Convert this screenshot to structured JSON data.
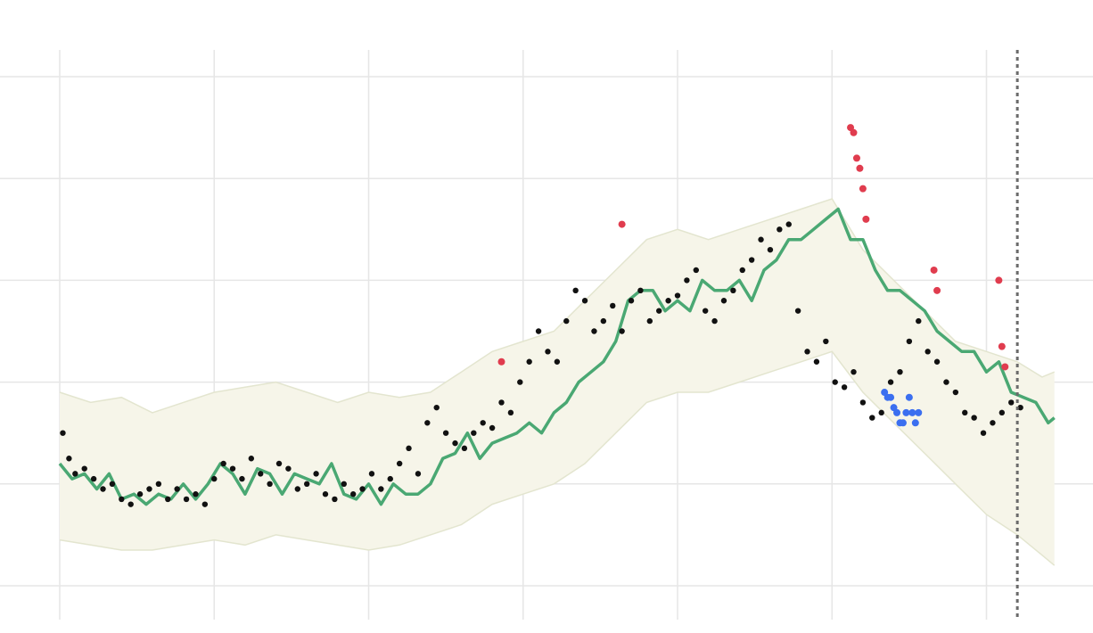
{
  "chart_data": {
    "type": "line",
    "title": "",
    "xlabel": "",
    "ylabel": "",
    "grid": true,
    "legend": "none",
    "xlim": [
      0,
      336
    ],
    "ylim": [
      -10,
      45
    ],
    "x_gridlines": [
      0,
      50,
      100,
      150,
      200,
      250,
      300
    ],
    "y_gridlines": [
      -5,
      5,
      15,
      25,
      35,
      45
    ],
    "forecast_start_x": 310,
    "colors": {
      "band_fill": "#f6f5e9",
      "band_edge": "#e3e5cf",
      "line": "#4aa873",
      "observed": "#111111",
      "upper_anomaly": "#e03c4e",
      "lower_anomaly": "#3b6ff0",
      "forecast_marker": "#6b6b6b",
      "grid": "#e6e6e6"
    },
    "series": [
      {
        "role": "expected",
        "x": [
          0,
          4,
          8,
          12,
          16,
          20,
          24,
          28,
          32,
          36,
          40,
          44,
          48,
          52,
          56,
          60,
          64,
          68,
          72,
          76,
          80,
          84,
          88,
          92,
          96,
          100,
          104,
          108,
          112,
          116,
          120,
          124,
          128,
          132,
          136,
          140,
          144,
          148,
          152,
          156,
          160,
          164,
          168,
          172,
          176,
          180,
          184,
          188,
          192,
          196,
          200,
          204,
          208,
          212,
          216,
          220,
          224,
          228,
          232,
          236,
          240,
          244,
          248,
          252,
          256,
          260,
          264,
          268,
          272,
          276,
          280,
          284,
          288,
          292,
          296,
          300,
          304,
          308,
          312,
          316,
          320,
          322
        ],
        "y": [
          7,
          5.5,
          6,
          4.5,
          6,
          3.5,
          4,
          3,
          4,
          3.5,
          5,
          3.5,
          5,
          7,
          6,
          4,
          6.5,
          6,
          4,
          6,
          5.5,
          5,
          7,
          4,
          3.5,
          5,
          3,
          5,
          4,
          4,
          5,
          7.5,
          8,
          10,
          7.5,
          9,
          9.5,
          10,
          11,
          10,
          12,
          13,
          15,
          16,
          17,
          19,
          23,
          24,
          24,
          22,
          23,
          22,
          25,
          24,
          24,
          25,
          23,
          26,
          27,
          29,
          29,
          30,
          31,
          32,
          29,
          29,
          26,
          24,
          24,
          23,
          22,
          20,
          19,
          18,
          18,
          16,
          17,
          14,
          13.5,
          13,
          11,
          11.5
        ]
      },
      {
        "role": "upper_bound",
        "x": [
          0,
          10,
          20,
          30,
          40,
          50,
          60,
          70,
          80,
          90,
          100,
          110,
          120,
          130,
          140,
          150,
          160,
          170,
          180,
          190,
          200,
          210,
          220,
          230,
          240,
          250,
          260,
          270,
          280,
          290,
          300,
          310,
          318,
          322
        ],
        "y": [
          14,
          13,
          13.5,
          12,
          13,
          14,
          14.5,
          15,
          14,
          13,
          14,
          13.5,
          14,
          16,
          18,
          19,
          20,
          23,
          26,
          29,
          30,
          29,
          30,
          31,
          32,
          33,
          28,
          25,
          22,
          19,
          18,
          17,
          15.5,
          16
        ]
      },
      {
        "role": "lower_bound",
        "x": [
          0,
          10,
          20,
          30,
          40,
          50,
          60,
          70,
          80,
          90,
          100,
          110,
          120,
          130,
          140,
          150,
          160,
          170,
          180,
          190,
          200,
          210,
          220,
          230,
          240,
          250,
          260,
          270,
          280,
          290,
          300,
          310,
          318,
          322
        ],
        "y": [
          -0.5,
          -1,
          -1.5,
          -1.5,
          -1,
          -0.5,
          -1,
          0,
          -0.5,
          -1,
          -1.5,
          -1,
          0,
          1,
          3,
          4,
          5,
          7,
          10,
          13,
          14,
          14,
          15,
          16,
          17,
          18,
          14,
          11,
          8,
          5,
          2,
          0,
          -2,
          -3
        ]
      }
    ],
    "observed_points": {
      "x": [
        1,
        3,
        5,
        8,
        11,
        14,
        17,
        20,
        23,
        26,
        29,
        32,
        35,
        38,
        41,
        44,
        47,
        50,
        53,
        56,
        59,
        62,
        65,
        68,
        71,
        74,
        77,
        80,
        83,
        86,
        89,
        92,
        95,
        98,
        101,
        104,
        107,
        110,
        113,
        116,
        119,
        122,
        125,
        128,
        131,
        134,
        137,
        140,
        143,
        146,
        149,
        152,
        155,
        158,
        161,
        164,
        167,
        170,
        173,
        176,
        179,
        182,
        185,
        188,
        191,
        194,
        197,
        200,
        203,
        206,
        209,
        212,
        215,
        218,
        221,
        224,
        227,
        230,
        233,
        236,
        239,
        242,
        245,
        248,
        251,
        254,
        257,
        260,
        263,
        266,
        269,
        272,
        275,
        278,
        281,
        284,
        287,
        290,
        293,
        296,
        299,
        302,
        305,
        308,
        311
      ],
      "y": [
        10,
        7.5,
        6,
        6.5,
        5.5,
        4.5,
        5,
        3.5,
        3,
        4,
        4.5,
        5,
        3.5,
        4.5,
        3.5,
        4,
        3,
        5.5,
        7,
        6.5,
        5.5,
        7.5,
        6,
        5,
        7,
        6.5,
        4.5,
        5,
        6,
        4,
        3.5,
        5,
        4,
        4.5,
        6,
        4.5,
        5.5,
        7,
        8.5,
        6,
        11,
        12.5,
        10,
        9,
        8.5,
        10,
        11,
        10.5,
        13,
        12,
        15,
        17,
        20,
        18,
        17,
        21,
        24,
        23,
        20,
        21,
        22.5,
        20,
        23,
        24,
        21,
        22,
        23,
        23.5,
        25,
        26,
        22,
        21,
        23,
        24,
        26,
        27,
        29,
        28,
        30,
        30.5,
        22,
        18,
        17,
        19,
        15,
        14.5,
        16,
        13,
        11.5,
        12,
        15,
        16,
        19,
        21,
        18,
        17,
        15,
        14,
        12,
        11.5,
        10,
        11,
        12,
        13,
        12.5
      ]
    },
    "upper_anomalies": {
      "x": [
        182,
        143,
        256,
        257,
        258,
        259,
        260,
        261,
        283,
        284,
        304,
        305,
        306
      ],
      "y": [
        30.5,
        17,
        40,
        39.5,
        37,
        36,
        34,
        31,
        26,
        24,
        25,
        18.5,
        16.5
      ]
    },
    "lower_anomalies": {
      "x": [
        267,
        268,
        269,
        270,
        271,
        272,
        273,
        274,
        275,
        276,
        277,
        278
      ],
      "y": [
        14,
        13.5,
        13.5,
        12.5,
        12,
        11,
        11,
        12,
        13.5,
        12,
        11,
        12
      ]
    }
  }
}
